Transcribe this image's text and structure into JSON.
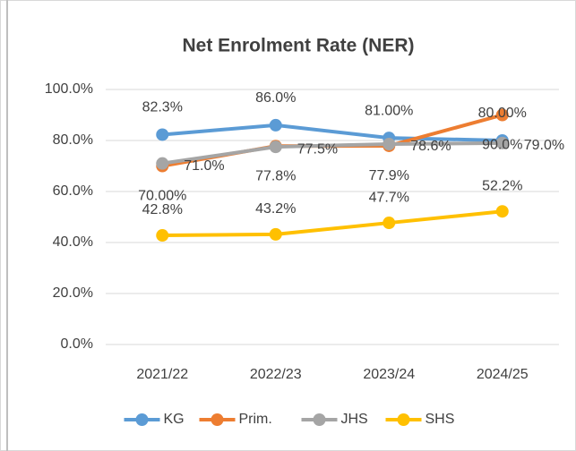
{
  "chart_data": {
    "type": "line",
    "title": "Net Enrolment Rate (NER)",
    "categories": [
      "2021/22",
      "2022/23",
      "2023/24",
      "2024/25"
    ],
    "series": [
      {
        "name": "KG",
        "color": "#5b9bd5",
        "values": [
          82.3,
          86.0,
          81.0,
          80.0
        ],
        "value_labels": [
          "82.3%",
          "86.0%",
          "81.00%",
          "80.00%"
        ]
      },
      {
        "name": "Prim.",
        "color": "#ed7d31",
        "values": [
          70.0,
          77.8,
          77.9,
          90.0
        ],
        "value_labels": [
          "70.00%",
          "77.8%",
          "77.9%",
          "90.0%"
        ]
      },
      {
        "name": "JHS",
        "color": "#a5a5a5",
        "values": [
          71.0,
          77.5,
          78.6,
          79.0
        ],
        "value_labels": [
          "71.0%",
          "77.5%",
          "78.6%",
          "79.0%"
        ]
      },
      {
        "name": "SHS",
        "color": "#ffc000",
        "values": [
          42.8,
          43.2,
          47.7,
          52.2
        ],
        "value_labels": [
          "42.8%",
          "43.2%",
          "47.7%",
          "52.2%"
        ]
      }
    ],
    "ylim": [
      0,
      100
    ],
    "yticks": [
      {
        "value": 0,
        "label": "0.0%"
      },
      {
        "value": 20,
        "label": "20.0%"
      },
      {
        "value": 40,
        "label": "40.0%"
      },
      {
        "value": 60,
        "label": "60.0%"
      },
      {
        "value": 80,
        "label": "80.0%"
      },
      {
        "value": 100,
        "label": "100.0%"
      }
    ],
    "grid": true,
    "legend": "bottom"
  }
}
